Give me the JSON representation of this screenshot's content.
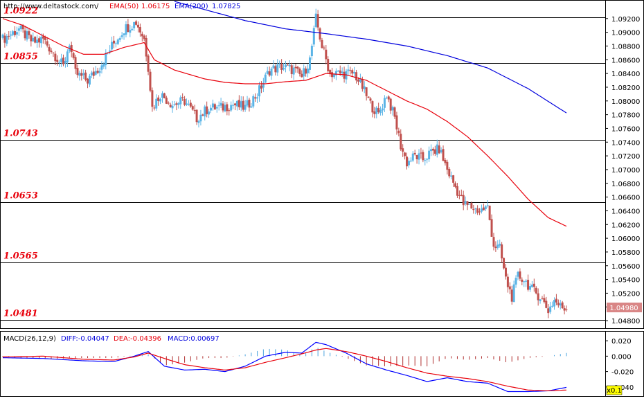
{
  "header": {
    "site": "http://www.deltastock.com/",
    "ema50_label": "EMA(50)",
    "ema50_value": "1.06175",
    "ema200_label": "EMA(200)",
    "ema200_value": "1.07825"
  },
  "macd_header": {
    "name": "MACD(26,12,9)",
    "diff": "DIFF:-0.04047",
    "dea": "DEA:-0.04396",
    "macd": "MACD:0.00697"
  },
  "price_badge": "1.04980",
  "scale_badge": "x0.1",
  "colors": {
    "up_candle": "#5ab4e6",
    "down_candle": "#c0504d",
    "ema50": "#e8000b",
    "ema200": "#0000dd",
    "level_text": "#e8000b",
    "hist_pos": "#4aa3df",
    "hist_neg": "#b03030",
    "diff_line": "#0000ff",
    "dea_line": "#e8000b",
    "badge_fill": "#d98686"
  },
  "chart_data": [
    {
      "type": "candlestick",
      "price_range": [
        1.047,
        1.0945
      ],
      "y_ticks": [
        "1.09200",
        "1.09000",
        "1.08800",
        "1.08600",
        "1.08400",
        "1.08200",
        "1.08000",
        "1.07800",
        "1.07600",
        "1.07400",
        "1.07200",
        "1.07000",
        "1.06800",
        "1.06600",
        "1.06400",
        "1.06200",
        "1.06000",
        "1.05800",
        "1.05600",
        "1.05400",
        "1.05200",
        "1.05000",
        "1.04800"
      ],
      "y_tick_values": [
        1.092,
        1.09,
        1.088,
        1.086,
        1.084,
        1.082,
        1.08,
        1.078,
        1.076,
        1.074,
        1.072,
        1.07,
        1.068,
        1.066,
        1.064,
        1.062,
        1.06,
        1.058,
        1.056,
        1.054,
        1.052,
        1.05,
        1.048
      ],
      "levels": [
        {
          "label": "1.0922",
          "value": 1.0922
        },
        {
          "label": "1.0855",
          "value": 1.0855
        },
        {
          "label": "1.0743",
          "value": 1.0743
        },
        {
          "label": "1.0653",
          "value": 1.0653
        },
        {
          "label": "1.0565",
          "value": 1.0565
        },
        {
          "label": "1.0481",
          "value": 1.0481
        }
      ],
      "anchors": [
        [
          0,
          1.089
        ],
        [
          8,
          1.0905
        ],
        [
          15,
          1.0885
        ],
        [
          20,
          1.089
        ],
        [
          25,
          1.087
        ],
        [
          30,
          1.085
        ],
        [
          33,
          1.0885
        ],
        [
          36,
          1.084
        ],
        [
          42,
          1.083
        ],
        [
          48,
          1.085
        ],
        [
          54,
          1.088
        ],
        [
          60,
          1.0905
        ],
        [
          66,
          1.0915
        ],
        [
          70,
          1.089
        ],
        [
          72,
          1.085
        ],
        [
          74,
          1.079
        ],
        [
          78,
          1.081
        ],
        [
          84,
          1.0795
        ],
        [
          90,
          1.08
        ],
        [
          96,
          1.0775
        ],
        [
          102,
          1.079
        ],
        [
          108,
          1.079
        ],
        [
          114,
          1.0795
        ],
        [
          120,
          1.079
        ],
        [
          126,
          1.081
        ],
        [
          132,
          1.0845
        ],
        [
          138,
          1.085
        ],
        [
          144,
          1.0845
        ],
        [
          148,
          1.0835
        ],
        [
          152,
          1.086
        ],
        [
          155,
          1.092
        ],
        [
          158,
          1.088
        ],
        [
          162,
          1.084
        ],
        [
          168,
          1.084
        ],
        [
          174,
          1.084
        ],
        [
          178,
          1.082
        ],
        [
          182,
          1.0795
        ],
        [
          186,
          1.078
        ],
        [
          190,
          1.081
        ],
        [
          194,
          1.0775
        ],
        [
          197,
          1.0735
        ],
        [
          200,
          1.071
        ],
        [
          204,
          1.072
        ],
        [
          208,
          1.0715
        ],
        [
          212,
          1.0725
        ],
        [
          216,
          1.073
        ],
        [
          220,
          1.07
        ],
        [
          224,
          1.0675
        ],
        [
          228,
          1.065
        ],
        [
          232,
          1.0645
        ],
        [
          236,
          1.064
        ],
        [
          240,
          1.0645
        ],
        [
          243,
          1.059
        ],
        [
          246,
          1.0585
        ],
        [
          249,
          1.054
        ],
        [
          252,
          1.0515
        ],
        [
          255,
          1.0545
        ],
        [
          258,
          1.054
        ],
        [
          262,
          1.0525
        ],
        [
          266,
          1.0515
        ],
        [
          270,
          1.0495
        ],
        [
          273,
          1.051
        ],
        [
          276,
          1.05
        ],
        [
          279,
          1.0498
        ]
      ],
      "candle_count": 280,
      "ema50": [
        [
          0,
          1.092
        ],
        [
          10,
          1.091
        ],
        [
          20,
          1.0895
        ],
        [
          30,
          1.088
        ],
        [
          40,
          1.0868
        ],
        [
          50,
          1.0868
        ],
        [
          60,
          1.0878
        ],
        [
          70,
          1.0885
        ],
        [
          75,
          1.086
        ],
        [
          85,
          1.0845
        ],
        [
          100,
          1.0832
        ],
        [
          110,
          1.0827
        ],
        [
          120,
          1.0825
        ],
        [
          130,
          1.0825
        ],
        [
          140,
          1.0828
        ],
        [
          150,
          1.083
        ],
        [
          160,
          1.084
        ],
        [
          170,
          1.0838
        ],
        [
          180,
          1.083
        ],
        [
          190,
          1.0815
        ],
        [
          200,
          1.08
        ],
        [
          210,
          1.0788
        ],
        [
          220,
          1.077
        ],
        [
          230,
          1.0748
        ],
        [
          240,
          1.072
        ],
        [
          250,
          1.069
        ],
        [
          260,
          1.0657
        ],
        [
          270,
          1.063
        ],
        [
          279,
          1.06175
        ]
      ],
      "ema200": [
        [
          85,
          1.0945
        ],
        [
          100,
          1.0933
        ],
        [
          120,
          1.0917
        ],
        [
          140,
          1.0905
        ],
        [
          160,
          1.0898
        ],
        [
          180,
          1.089
        ],
        [
          200,
          1.088
        ],
        [
          220,
          1.0866
        ],
        [
          240,
          1.0848
        ],
        [
          260,
          1.0818
        ],
        [
          279,
          1.07825
        ]
      ]
    },
    {
      "type": "macd",
      "y_range": [
        -0.05,
        0.03
      ],
      "y_ticks": [
        "0.020",
        "0.000",
        "-0.020",
        "-0.040"
      ],
      "y_tick_values": [
        0.02,
        0.0,
        -0.02,
        -0.04
      ],
      "diff": [
        [
          0,
          -0.002
        ],
        [
          20,
          -0.003
        ],
        [
          40,
          -0.006
        ],
        [
          55,
          -0.007
        ],
        [
          65,
          0.0
        ],
        [
          72,
          0.006
        ],
        [
          80,
          -0.013
        ],
        [
          90,
          -0.018
        ],
        [
          100,
          -0.017
        ],
        [
          110,
          -0.02
        ],
        [
          120,
          -0.013
        ],
        [
          130,
          0.0
        ],
        [
          140,
          0.005
        ],
        [
          148,
          0.004
        ],
        [
          155,
          0.018
        ],
        [
          160,
          0.015
        ],
        [
          170,
          0.004
        ],
        [
          180,
          -0.01
        ],
        [
          190,
          -0.018
        ],
        [
          200,
          -0.025
        ],
        [
          210,
          -0.033
        ],
        [
          220,
          -0.028
        ],
        [
          230,
          -0.033
        ],
        [
          240,
          -0.035
        ],
        [
          250,
          -0.046
        ],
        [
          260,
          -0.046
        ],
        [
          270,
          -0.045
        ],
        [
          279,
          -0.04047
        ]
      ],
      "dea": [
        [
          0,
          -0.001
        ],
        [
          20,
          0.0
        ],
        [
          40,
          -0.004
        ],
        [
          55,
          -0.005
        ],
        [
          65,
          -0.001
        ],
        [
          72,
          0.004
        ],
        [
          80,
          -0.003
        ],
        [
          90,
          -0.011
        ],
        [
          100,
          -0.015
        ],
        [
          110,
          -0.018
        ],
        [
          120,
          -0.015
        ],
        [
          130,
          -0.008
        ],
        [
          140,
          -0.002
        ],
        [
          148,
          0.003
        ],
        [
          155,
          0.008
        ],
        [
          160,
          0.01
        ],
        [
          170,
          0.006
        ],
        [
          180,
          0.0
        ],
        [
          190,
          -0.007
        ],
        [
          200,
          -0.015
        ],
        [
          210,
          -0.022
        ],
        [
          220,
          -0.026
        ],
        [
          230,
          -0.029
        ],
        [
          240,
          -0.033
        ],
        [
          250,
          -0.039
        ],
        [
          260,
          -0.044
        ],
        [
          270,
          -0.045
        ],
        [
          279,
          -0.04396
        ]
      ]
    }
  ]
}
